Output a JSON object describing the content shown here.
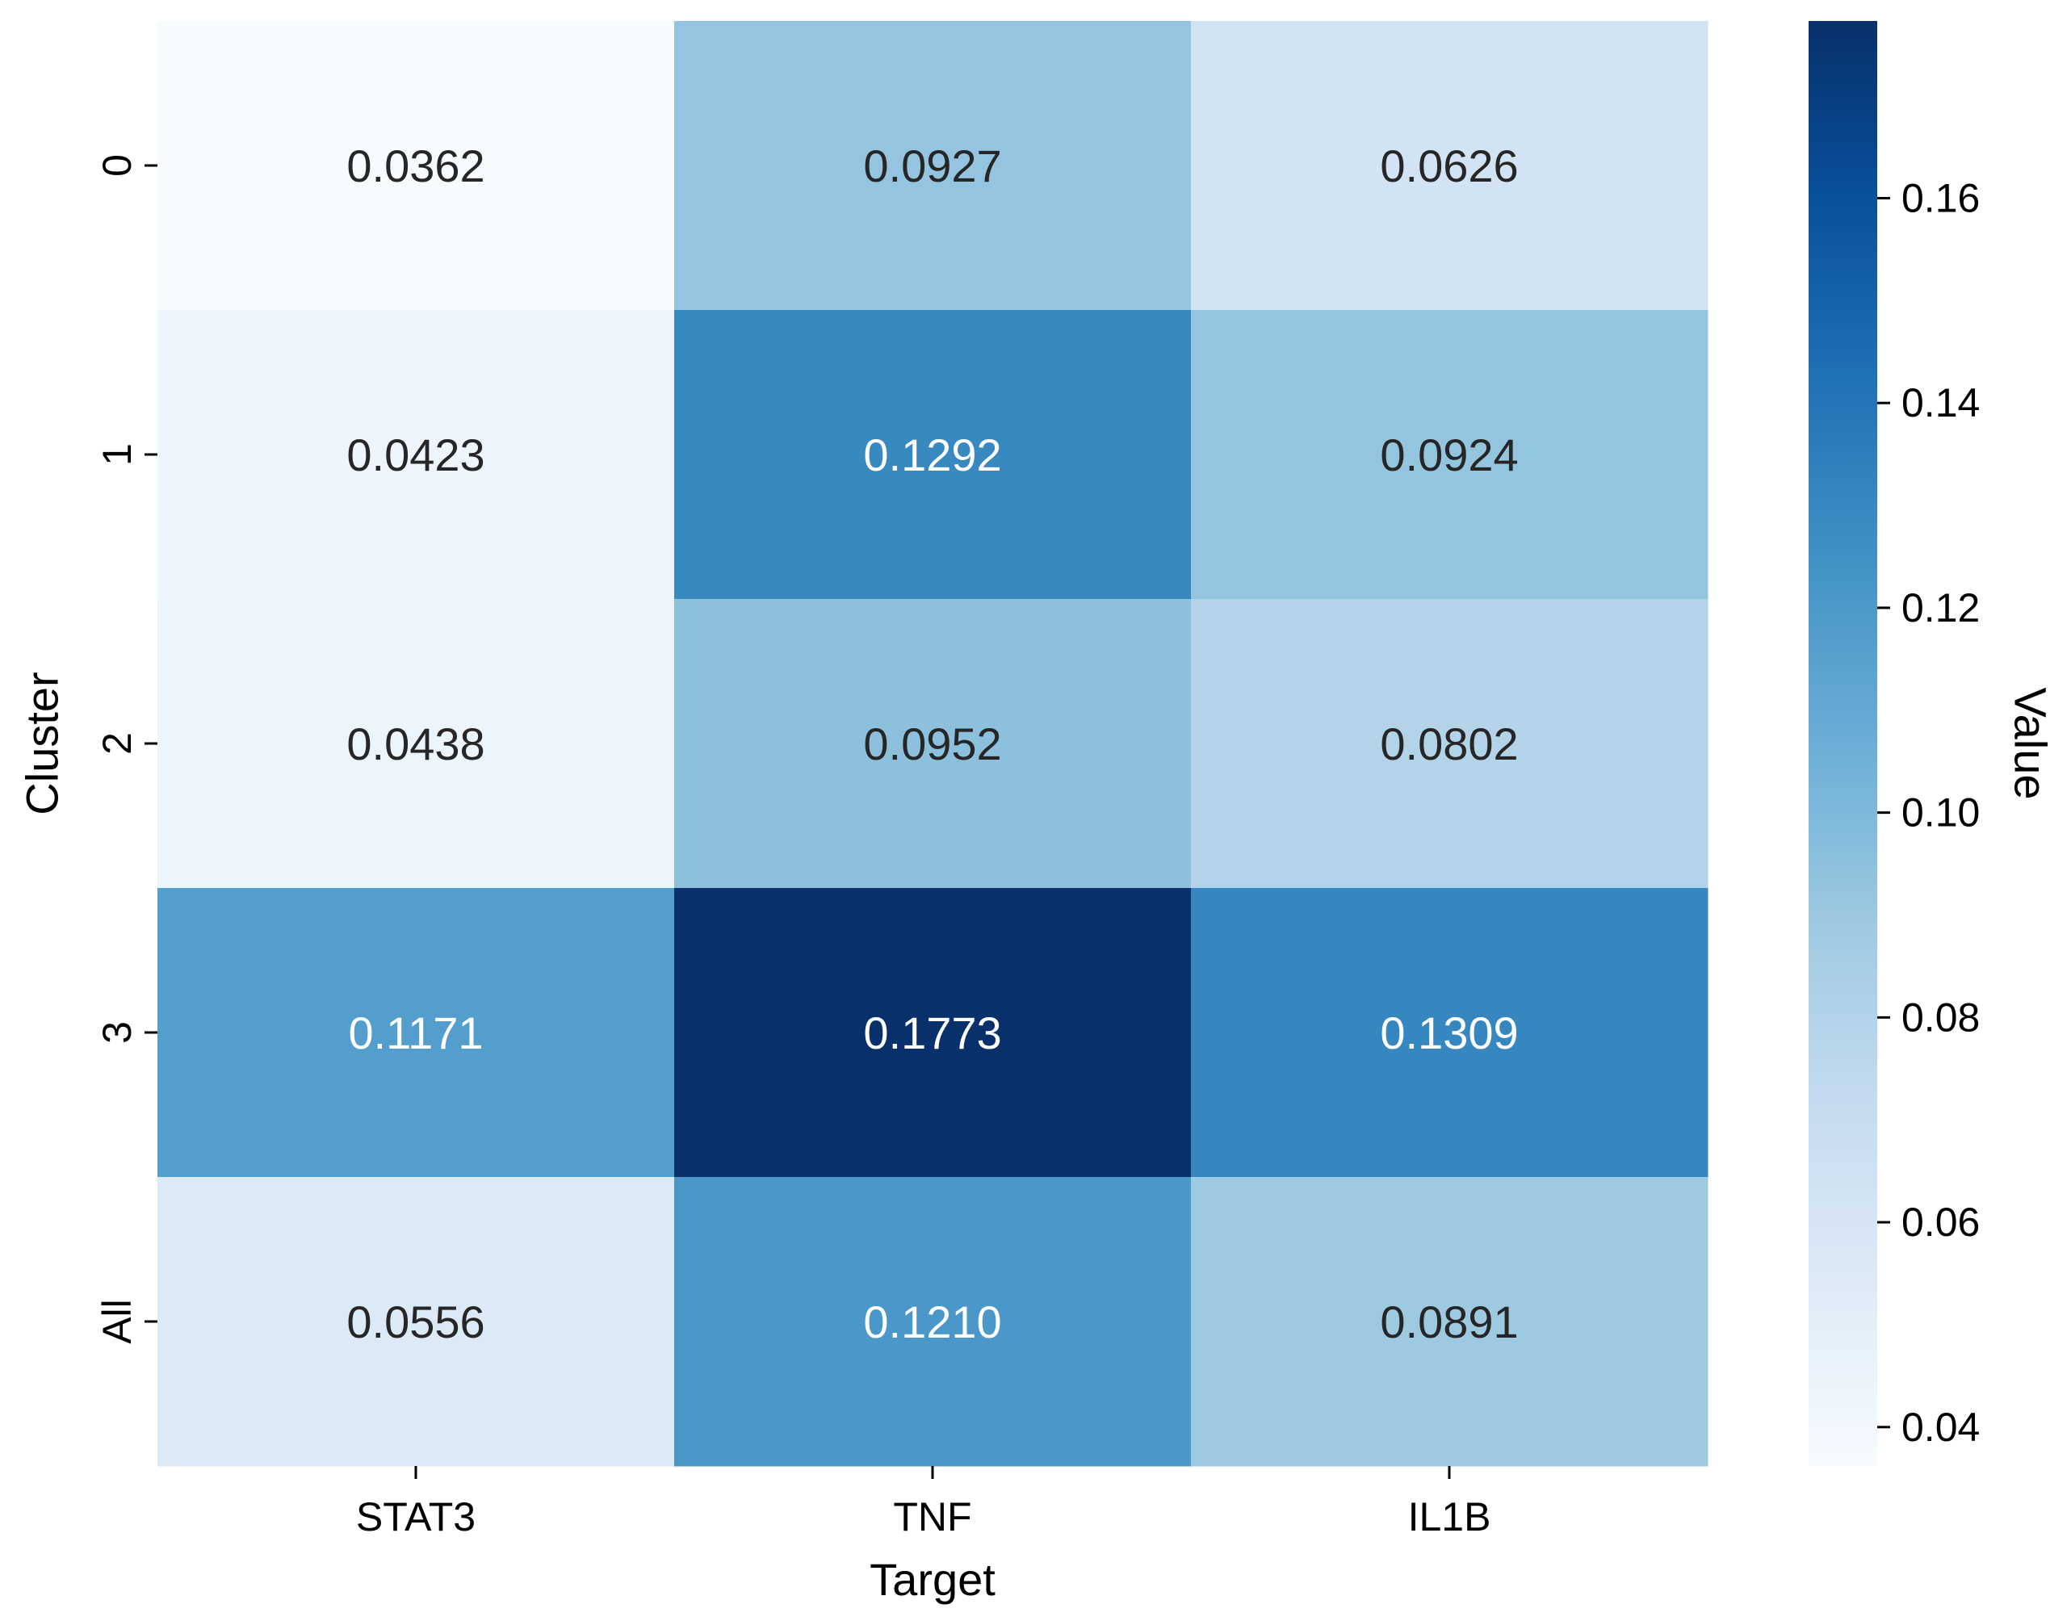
{
  "chart_data": {
    "type": "heatmap",
    "xlabel": "Target",
    "ylabel": "Cluster",
    "x_categories": [
      "STAT3",
      "TNF",
      "IL1B"
    ],
    "y_categories": [
      "0",
      "1",
      "2",
      "3",
      "All"
    ],
    "values": [
      [
        0.0362,
        0.0927,
        0.0626
      ],
      [
        0.0423,
        0.1292,
        0.0924
      ],
      [
        0.0438,
        0.0952,
        0.0802
      ],
      [
        0.1171,
        0.1773,
        0.1309
      ],
      [
        0.0556,
        0.121,
        0.0891
      ]
    ],
    "cell_labels": [
      [
        "0.0362",
        "0.0927",
        "0.0626"
      ],
      [
        "0.0423",
        "0.1292",
        "0.0924"
      ],
      [
        "0.0438",
        "0.0952",
        "0.0802"
      ],
      [
        "0.1171",
        "0.1773",
        "0.1309"
      ],
      [
        "0.0556",
        "0.1210",
        "0.0891"
      ]
    ],
    "colormap": "Blues",
    "colormap_stops": [
      "#f7fbff",
      "#deebf7",
      "#c6dbef",
      "#9ecae1",
      "#6baed6",
      "#4292c6",
      "#2171b5",
      "#08519c",
      "#08306b"
    ],
    "vmin": 0.0362,
    "vmax": 0.1773,
    "colorbar": {
      "label": "Value",
      "ticks": [
        0.04,
        0.06,
        0.08,
        0.1,
        0.12,
        0.14,
        0.16
      ],
      "tick_labels": [
        "0.04",
        "0.06",
        "0.08",
        "0.10",
        "0.12",
        "0.14",
        "0.16"
      ]
    },
    "grid": false,
    "legend": "colorbar-right"
  }
}
